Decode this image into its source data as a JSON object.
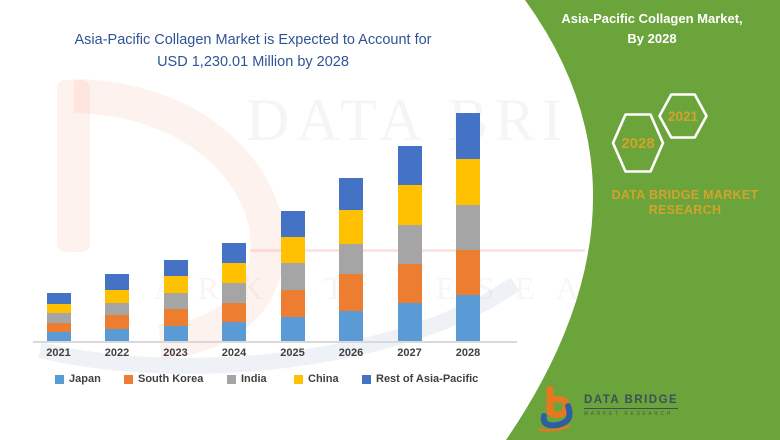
{
  "chart": {
    "title_line1": "Asia-Pacific Collagen Market is Expected to Account for",
    "title_line2": "USD 1,230.01 Million by 2028",
    "title_color": "#2f5496"
  },
  "chart_data": {
    "type": "bar",
    "stacked": true,
    "title": "Asia-Pacific Collagen Market is Expected to Account for USD 1,230.01 Million by 2028",
    "unit": "USD Million",
    "categories": [
      "2021",
      "2022",
      "2023",
      "2024",
      "2025",
      "2026",
      "2027",
      "2028"
    ],
    "series": [
      {
        "name": "Japan",
        "color": "#5b9bd5",
        "values": [
          55,
          68,
          88,
          106,
          136,
          168,
          210,
          250
        ]
      },
      {
        "name": "South Korea",
        "color": "#ed7d31",
        "values": [
          48,
          75,
          88,
          106,
          145,
          197,
          210,
          242
        ]
      },
      {
        "name": "India",
        "color": "#a5a5a5",
        "values": [
          52,
          68,
          88,
          106,
          143,
          161,
          211,
          242
        ]
      },
      {
        "name": "China",
        "color": "#ffc000",
        "values": [
          50,
          68,
          88,
          107,
          140,
          184,
          210,
          251
        ]
      },
      {
        "name": "Rest of Asia-Pacific",
        "color": "#4472c4",
        "values": [
          58,
          86,
          88,
          107,
          140,
          170,
          212,
          245.01
        ]
      }
    ],
    "totals_estimated": [
      263,
      365,
      440,
      532,
      704,
      880,
      1053,
      1230.01
    ],
    "ylim": [
      0,
      1230.01
    ],
    "grid": false,
    "legend_position": "bottom"
  },
  "watermark": {
    "big_text": "DATA BRI",
    "spaced_text": "MARKET RESEARCH"
  },
  "side_panel": {
    "bg_color": "#6ca43c",
    "gold_color": "#d1a32a",
    "title_line1": "Asia-Pacific Collagen Market,",
    "title_line2": "By 2028",
    "hexagon_back_label": "2021",
    "hexagon_front_label": "2028",
    "brand_line1": "DATA BRIDGE MARKET",
    "brand_line2": "RESEARCH"
  },
  "logo": {
    "wordmark": "DATA BRIDGE",
    "tagline": "MARKET RESEARCH"
  }
}
